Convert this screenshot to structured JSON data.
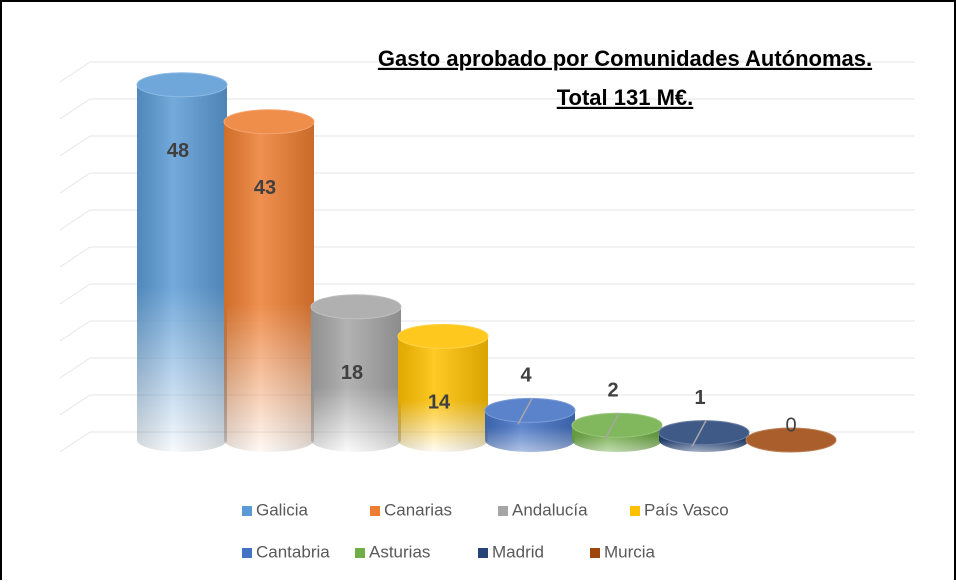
{
  "chart_data": {
    "type": "bar3d",
    "title": [
      "Gasto aprobado por Comunidades Autónomas.",
      "Total 131 M€."
    ],
    "categories": [
      "Galicia",
      "Canarias",
      "Andalucía",
      "País Vasco",
      "Cantabria",
      "Asturias",
      "Madrid",
      "Murcia"
    ],
    "values": [
      48,
      43,
      18,
      14,
      4,
      2,
      1,
      0
    ],
    "colors": [
      "#5b9bd5",
      "#ed7d31",
      "#a5a5a5",
      "#ffc000",
      "#4472c4",
      "#70ad47",
      "#264478",
      "#9e480e"
    ],
    "ylim": [
      0,
      50
    ],
    "yticks": [
      0,
      5,
      10,
      15,
      20,
      25,
      30,
      35,
      40,
      45,
      50
    ],
    "grid": true,
    "legend": "bottom"
  }
}
